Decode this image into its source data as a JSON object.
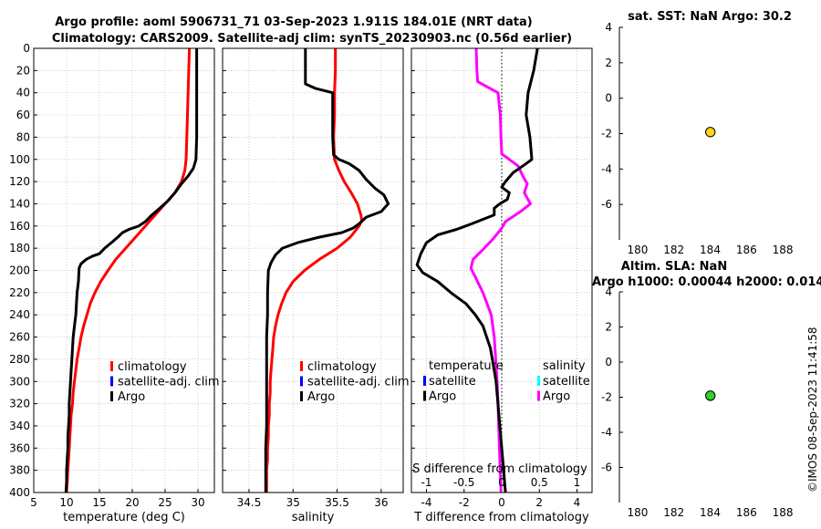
{
  "title": {
    "line1": "Argo profile: aoml 5906731_71 03-Sep-2023 1.911S 184.01E (NRT data)",
    "line2": "Climatology: CARS2009. Satellite-adj clim: synTS_20230903.nc (0.56d earlier)"
  },
  "watermark": "©IMOS 08-Sep-2023 11:41:58",
  "colors": {
    "climatology": "#ff0000",
    "satellite": "#0000ff",
    "argo": "#000000",
    "salinity_argo": "#ff00ff",
    "salinity_sat": "#00ffff",
    "marker_sst": "#ffd21e",
    "marker_sla": "#2fd22f",
    "grid": "#bbbbbb"
  },
  "chart_data": [
    {
      "id": "temperature",
      "type": "line",
      "xlabel": "temperature (deg C)",
      "ylabel": "",
      "xlim": [
        5,
        32.5
      ],
      "ylim": [
        400,
        0
      ],
      "xticks": [
        5,
        10,
        15,
        20,
        25,
        30
      ],
      "yticks": [
        0,
        20,
        40,
        60,
        80,
        100,
        120,
        140,
        160,
        180,
        200,
        220,
        240,
        260,
        280,
        300,
        320,
        340,
        360,
        380,
        400
      ],
      "legend": [
        "climatology",
        "satellite-adj. clim",
        "Argo"
      ],
      "series": [
        {
          "name": "climatology",
          "color": "#ff0000",
          "points": [
            [
              28.7,
              0
            ],
            [
              28.6,
              20
            ],
            [
              28.5,
              40
            ],
            [
              28.4,
              60
            ],
            [
              28.3,
              80
            ],
            [
              28.2,
              100
            ],
            [
              28.0,
              110
            ],
            [
              27.5,
              120
            ],
            [
              26.5,
              130
            ],
            [
              25.0,
              140
            ],
            [
              23.5,
              150
            ],
            [
              22.0,
              160
            ],
            [
              20.5,
              170
            ],
            [
              19.0,
              180
            ],
            [
              17.5,
              190
            ],
            [
              16.3,
              200
            ],
            [
              15.2,
              210
            ],
            [
              14.3,
              220
            ],
            [
              13.6,
              230
            ],
            [
              13.1,
              240
            ],
            [
              12.6,
              250
            ],
            [
              12.2,
              260
            ],
            [
              11.9,
              270
            ],
            [
              11.6,
              280
            ],
            [
              11.4,
              290
            ],
            [
              11.2,
              300
            ],
            [
              11.0,
              310
            ],
            [
              10.9,
              320
            ],
            [
              10.7,
              330
            ],
            [
              10.6,
              340
            ],
            [
              10.5,
              350
            ],
            [
              10.4,
              360
            ],
            [
              10.3,
              370
            ],
            [
              10.2,
              380
            ],
            [
              10.1,
              390
            ],
            [
              10.0,
              400
            ]
          ]
        },
        {
          "name": "Argo",
          "color": "#000000",
          "points": [
            [
              29.8,
              0
            ],
            [
              29.8,
              20
            ],
            [
              29.8,
              40
            ],
            [
              29.8,
              60
            ],
            [
              29.8,
              80
            ],
            [
              29.7,
              100
            ],
            [
              29.3,
              108
            ],
            [
              28.5,
              115
            ],
            [
              27.5,
              122
            ],
            [
              26.5,
              130
            ],
            [
              25.5,
              137
            ],
            [
              24.2,
              144
            ],
            [
              23.0,
              150
            ],
            [
              22.0,
              156
            ],
            [
              21.0,
              160
            ],
            [
              19.5,
              163
            ],
            [
              18.5,
              166
            ],
            [
              17.8,
              170
            ],
            [
              16.8,
              175
            ],
            [
              15.8,
              180
            ],
            [
              15.0,
              185
            ],
            [
              14.0,
              187
            ],
            [
              13.0,
              190
            ],
            [
              12.2,
              194
            ],
            [
              11.9,
              198
            ],
            [
              11.8,
              210
            ],
            [
              11.6,
              220
            ],
            [
              11.5,
              230
            ],
            [
              11.4,
              240
            ],
            [
              11.2,
              250
            ],
            [
              11.0,
              260
            ],
            [
              10.9,
              270
            ],
            [
              10.8,
              280
            ],
            [
              10.7,
              290
            ],
            [
              10.6,
              300
            ],
            [
              10.5,
              310
            ],
            [
              10.4,
              320
            ],
            [
              10.4,
              330
            ],
            [
              10.3,
              340
            ],
            [
              10.2,
              350
            ],
            [
              10.2,
              360
            ],
            [
              10.1,
              370
            ],
            [
              10.0,
              380
            ],
            [
              10.0,
              390
            ],
            [
              9.9,
              400
            ]
          ]
        }
      ]
    },
    {
      "id": "salinity",
      "type": "line",
      "xlabel": "salinity",
      "ylabel": "",
      "xlim": [
        34.2,
        36.25
      ],
      "ylim": [
        400,
        0
      ],
      "xticks": [
        34.5,
        35,
        35.5,
        36
      ],
      "xticklabels": [
        "34.5",
        "35",
        "35.5",
        "36"
      ],
      "legend": [
        "climatology",
        "satellite-adj. clim",
        "Argo"
      ],
      "series": [
        {
          "name": "climatology",
          "color": "#ff0000",
          "points": [
            [
              35.48,
              0
            ],
            [
              35.48,
              20
            ],
            [
              35.47,
              40
            ],
            [
              35.47,
              60
            ],
            [
              35.46,
              80
            ],
            [
              35.47,
              100
            ],
            [
              35.52,
              110
            ],
            [
              35.58,
              120
            ],
            [
              35.66,
              130
            ],
            [
              35.73,
              140
            ],
            [
              35.77,
              150
            ],
            [
              35.78,
              155
            ],
            [
              35.75,
              160
            ],
            [
              35.65,
              170
            ],
            [
              35.5,
              180
            ],
            [
              35.3,
              190
            ],
            [
              35.13,
              200
            ],
            [
              35.0,
              210
            ],
            [
              34.92,
              220
            ],
            [
              34.87,
              230
            ],
            [
              34.83,
              240
            ],
            [
              34.8,
              250
            ],
            [
              34.78,
              260
            ],
            [
              34.77,
              270
            ],
            [
              34.76,
              280
            ],
            [
              34.75,
              290
            ],
            [
              34.74,
              300
            ],
            [
              34.74,
              310
            ],
            [
              34.73,
              320
            ],
            [
              34.73,
              330
            ],
            [
              34.72,
              340
            ],
            [
              34.72,
              350
            ],
            [
              34.71,
              360
            ],
            [
              34.71,
              370
            ],
            [
              34.7,
              380
            ],
            [
              34.7,
              390
            ],
            [
              34.7,
              400
            ]
          ]
        },
        {
          "name": "Argo",
          "color": "#000000",
          "points": [
            [
              35.14,
              0
            ],
            [
              35.14,
              30
            ],
            [
              35.14,
              32
            ],
            [
              35.25,
              36
            ],
            [
              35.45,
              40
            ],
            [
              35.45,
              60
            ],
            [
              35.45,
              80
            ],
            [
              35.46,
              96
            ],
            [
              35.52,
              100
            ],
            [
              35.64,
              104
            ],
            [
              35.75,
              110
            ],
            [
              35.83,
              118
            ],
            [
              35.93,
              126
            ],
            [
              36.03,
              132
            ],
            [
              36.08,
              140
            ],
            [
              36.0,
              147
            ],
            [
              35.83,
              152
            ],
            [
              35.75,
              158
            ],
            [
              35.68,
              162
            ],
            [
              35.55,
              166
            ],
            [
              35.3,
              170
            ],
            [
              35.05,
              175
            ],
            [
              34.88,
              180
            ],
            [
              34.8,
              186
            ],
            [
              34.75,
              193
            ],
            [
              34.72,
              200
            ],
            [
              34.71,
              220
            ],
            [
              34.71,
              240
            ],
            [
              34.7,
              260
            ],
            [
              34.7,
              280
            ],
            [
              34.7,
              300
            ],
            [
              34.7,
              320
            ],
            [
              34.7,
              340
            ],
            [
              34.69,
              360
            ],
            [
              34.69,
              380
            ],
            [
              34.69,
              400
            ]
          ]
        }
      ]
    },
    {
      "id": "difference",
      "type": "line",
      "xlabel": "T difference from climatology",
      "xlabel_top": "S difference from climatology",
      "ylabel": "",
      "xlim": [
        -4.8,
        4.8
      ],
      "xlim_top": [
        -1.2,
        1.2
      ],
      "ylim": [
        400,
        0
      ],
      "xticks": [
        -4,
        -2,
        0,
        2,
        4
      ],
      "xticks_top": [
        -1,
        -0.5,
        0,
        0.5,
        1
      ],
      "xticklabels_top": [
        "-1",
        "-0.5",
        "0",
        "0.5",
        "1"
      ],
      "legend_left_title": "temperature",
      "legend_right_title": "salinity",
      "legend_left": [
        "satellite",
        "Argo"
      ],
      "legend_right": [
        "satellite",
        "Argo"
      ],
      "series": [
        {
          "name": "temperature Argo",
          "color": "#000000",
          "axis": "bottom",
          "points": [
            [
              1.9,
              0
            ],
            [
              1.7,
              20
            ],
            [
              1.4,
              40
            ],
            [
              1.3,
              60
            ],
            [
              1.5,
              80
            ],
            [
              1.6,
              100
            ],
            [
              1.2,
              105
            ],
            [
              0.6,
              112
            ],
            [
              0.2,
              120
            ],
            [
              0.0,
              125
            ],
            [
              0.4,
              130
            ],
            [
              0.3,
              136
            ],
            [
              -0.1,
              140
            ],
            [
              -0.4,
              144
            ],
            [
              -0.4,
              150
            ],
            [
              -1.0,
              154
            ],
            [
              -1.6,
              158
            ],
            [
              -2.4,
              163
            ],
            [
              -3.4,
              168
            ],
            [
              -4.0,
              175
            ],
            [
              -4.3,
              185
            ],
            [
              -4.5,
              195
            ],
            [
              -4.2,
              202
            ],
            [
              -3.4,
              210
            ],
            [
              -2.7,
              220
            ],
            [
              -1.9,
              230
            ],
            [
              -1.4,
              240
            ],
            [
              -1.0,
              250
            ],
            [
              -0.8,
              260
            ],
            [
              -0.6,
              270
            ],
            [
              -0.5,
              280
            ],
            [
              -0.4,
              290
            ],
            [
              -0.3,
              300
            ],
            [
              -0.2,
              320
            ],
            [
              -0.1,
              340
            ],
            [
              0.0,
              360
            ],
            [
              0.1,
              380
            ],
            [
              0.2,
              400
            ]
          ]
        },
        {
          "name": "salinity Argo",
          "color": "#ff00ff",
          "axis": "top",
          "points": [
            [
              -0.34,
              0
            ],
            [
              -0.33,
              20
            ],
            [
              -0.32,
              30
            ],
            [
              -0.05,
              40
            ],
            [
              -0.02,
              60
            ],
            [
              -0.01,
              80
            ],
            [
              0.0,
              95
            ],
            [
              0.1,
              100
            ],
            [
              0.22,
              106
            ],
            [
              0.28,
              115
            ],
            [
              0.34,
              122
            ],
            [
              0.3,
              130
            ],
            [
              0.38,
              140
            ],
            [
              0.25,
              147
            ],
            [
              0.05,
              156
            ],
            [
              0.0,
              162
            ],
            [
              -0.12,
              172
            ],
            [
              -0.26,
              182
            ],
            [
              -0.38,
              190
            ],
            [
              -0.41,
              198
            ],
            [
              -0.35,
              206
            ],
            [
              -0.25,
              220
            ],
            [
              -0.14,
              240
            ],
            [
              -0.1,
              260
            ],
            [
              -0.08,
              280
            ],
            [
              -0.06,
              300
            ],
            [
              -0.05,
              320
            ],
            [
              -0.04,
              340
            ],
            [
              -0.03,
              360
            ],
            [
              -0.02,
              380
            ],
            [
              -0.01,
              400
            ]
          ]
        }
      ]
    },
    {
      "id": "sst",
      "type": "scatter",
      "title": "sat. SST: NaN Argo: 30.2",
      "xlim": [
        179,
        189
      ],
      "ylim": [
        -8,
        4
      ],
      "xticks": [
        180,
        182,
        184,
        186,
        188
      ],
      "yticks": [
        4,
        2,
        0,
        -2,
        -4,
        -6
      ],
      "points": [
        {
          "x": 184.01,
          "y": -1.911,
          "color": "#ffd21e"
        }
      ]
    },
    {
      "id": "sla",
      "type": "scatter",
      "title": "Altim. SLA: NaN",
      "subtitle": "Argo h1000: 0.00044 h2000: 0.014",
      "xlim": [
        179,
        189
      ],
      "ylim": [
        -8,
        4
      ],
      "xticks": [
        180,
        182,
        184,
        186,
        188
      ],
      "yticks": [
        4,
        2,
        0,
        -2,
        -4,
        -6
      ],
      "points": [
        {
          "x": 184.01,
          "y": -1.911,
          "color": "#2fd22f"
        }
      ]
    }
  ]
}
